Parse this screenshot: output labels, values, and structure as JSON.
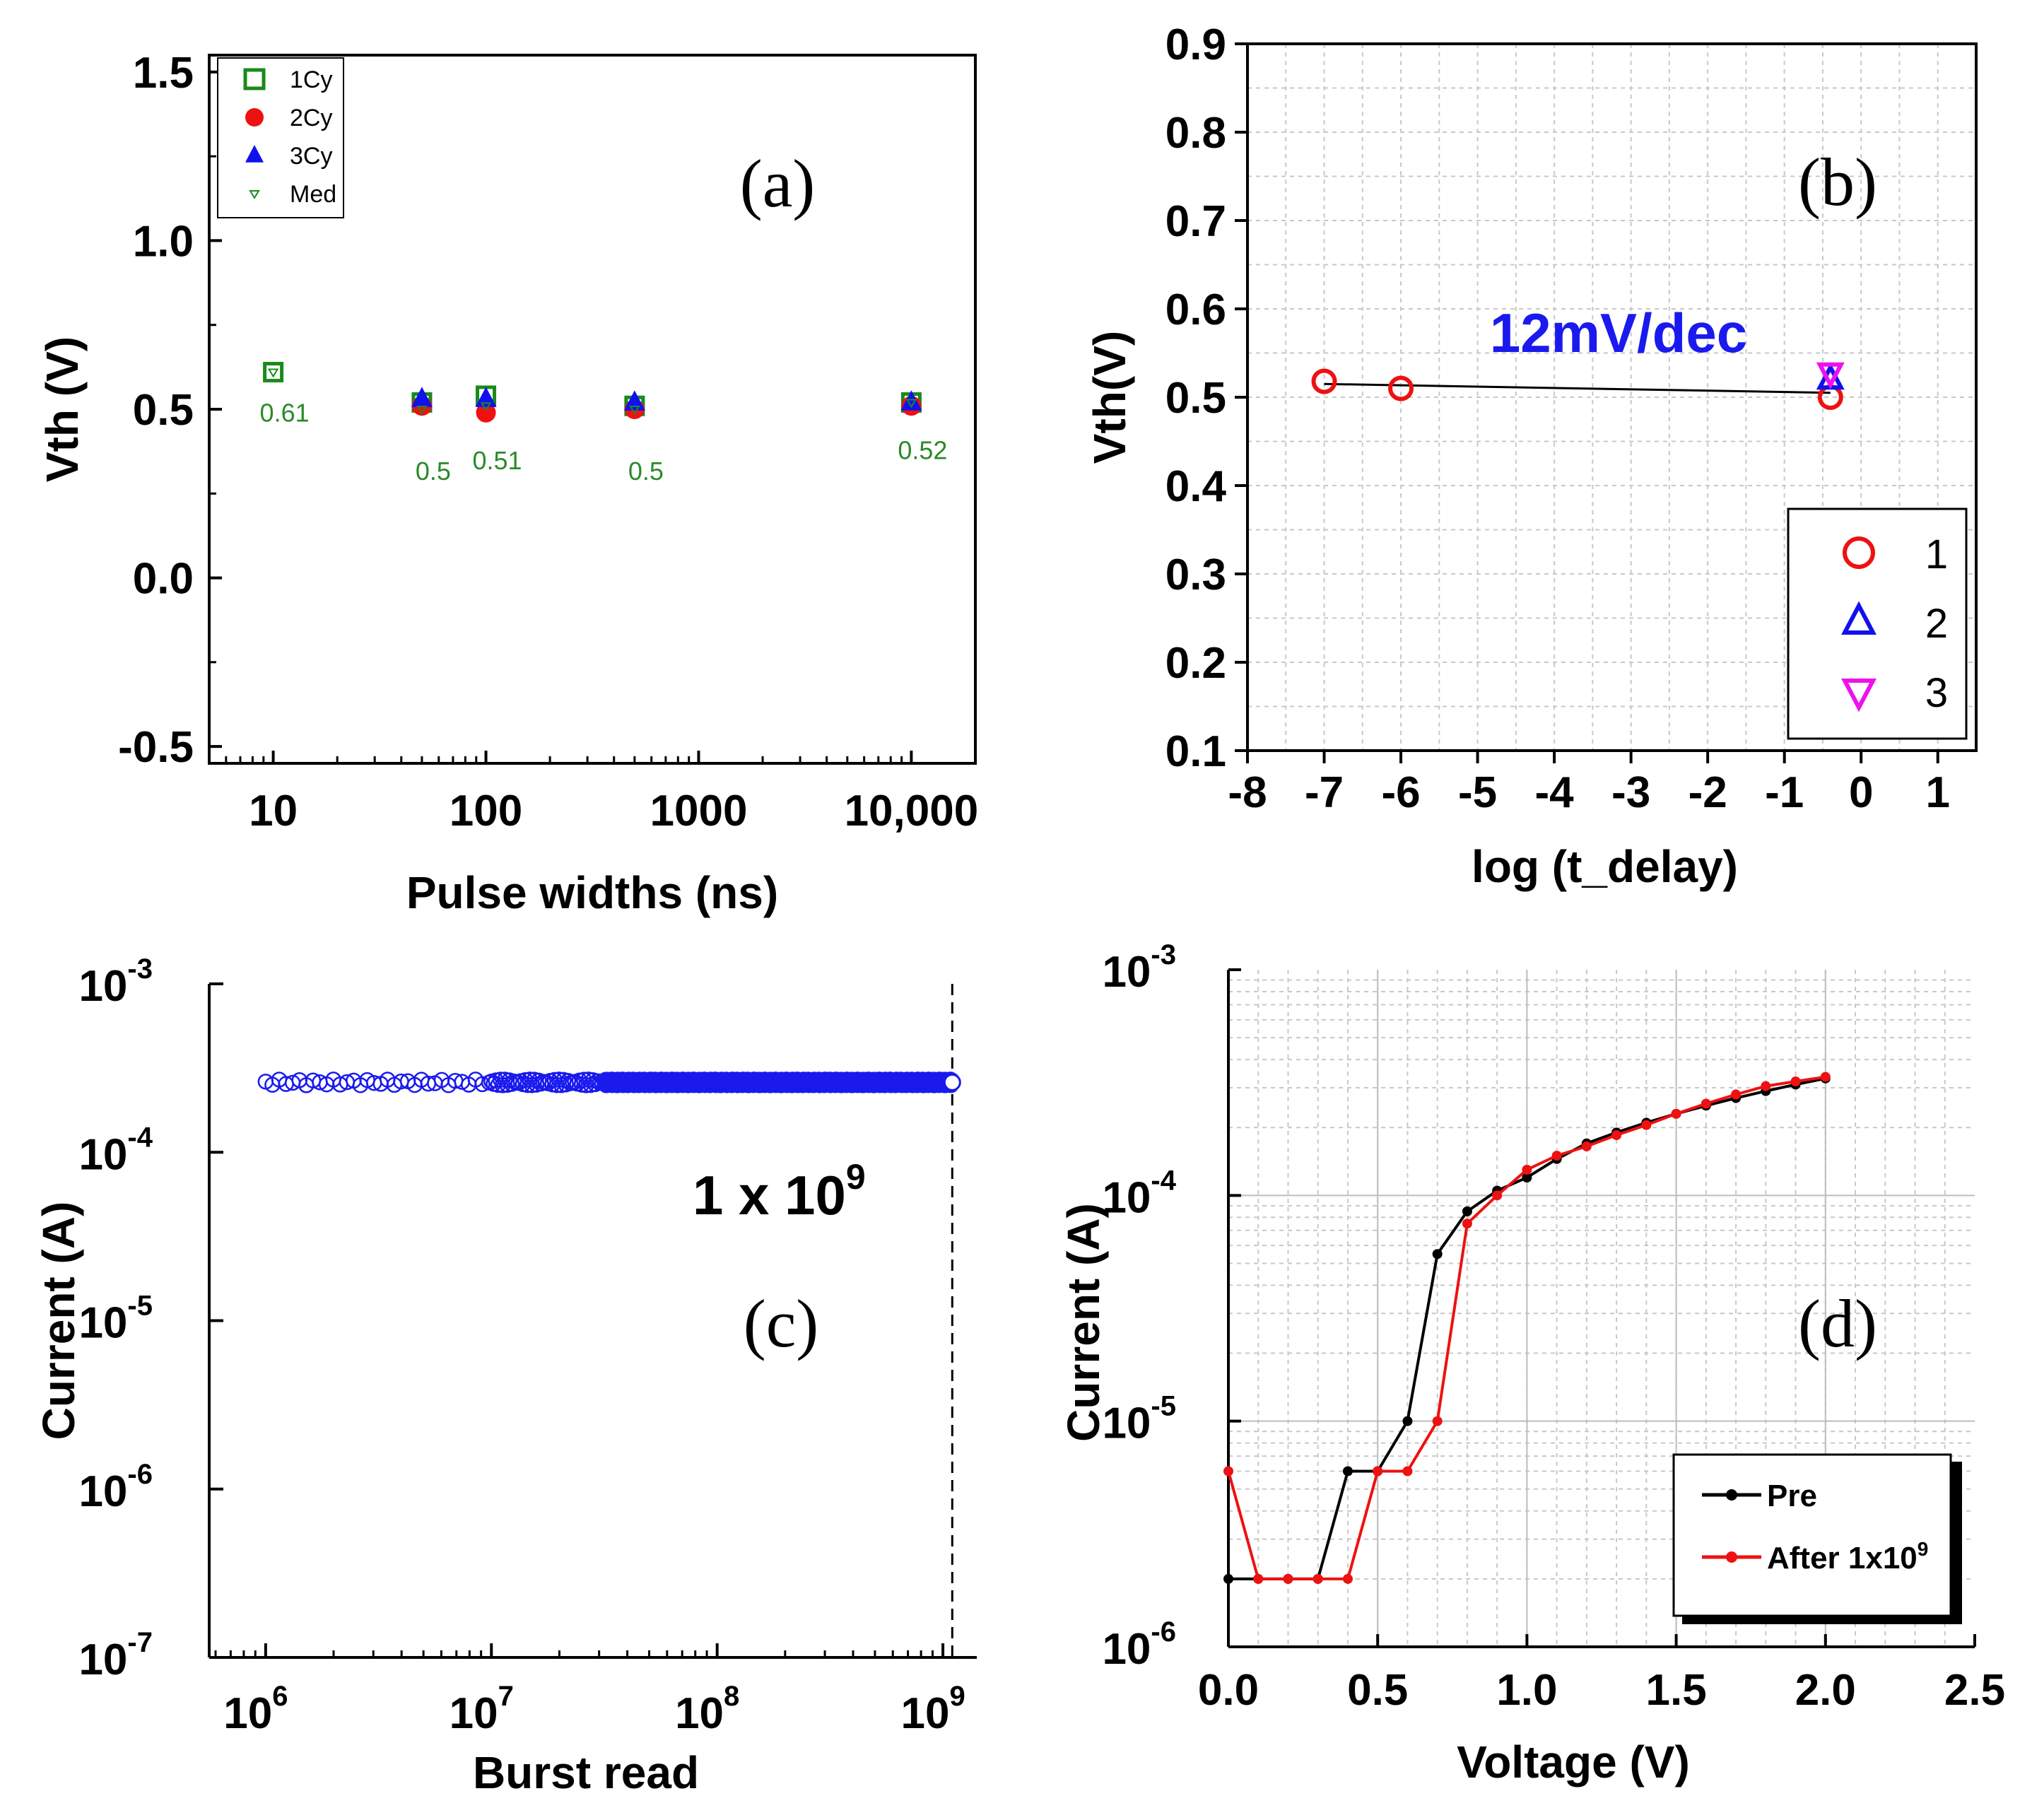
{
  "chart_data": [
    {
      "panel": "(a)",
      "type": "scatter",
      "xscale": "log",
      "xlabel": "Pulse widths (ns)",
      "ylabel": "Vth (V)",
      "xlim": [
        5,
        20000
      ],
      "ylim": [
        -0.55,
        1.55
      ],
      "xticks": [
        {
          "v": 10,
          "label": "10"
        },
        {
          "v": 100,
          "label": "100"
        },
        {
          "v": 1000,
          "label": "1000"
        },
        {
          "v": 10000,
          "label": "10,000"
        }
      ],
      "yticks": [
        {
          "v": 1.5,
          "label": "1.5"
        },
        {
          "v": 1.0,
          "label": "1.0"
        },
        {
          "v": 0.5,
          "label": "0.5"
        },
        {
          "v": 0.0,
          "label": "0.0"
        },
        {
          "v": -0.5,
          "label": "-0.5"
        }
      ],
      "series": [
        {
          "name": "1Cy",
          "marker": "open-square",
          "color": "#1a8a1a",
          "x": [
            10,
            50,
            100,
            500,
            10000
          ],
          "y": [
            0.61,
            0.52,
            0.54,
            0.51,
            0.52
          ]
        },
        {
          "name": "2Cy",
          "marker": "filled-circle",
          "color": "#ee1111",
          "x": [
            50,
            100,
            500,
            10000
          ],
          "y": [
            0.51,
            0.49,
            0.5,
            0.51
          ]
        },
        {
          "name": "3Cy",
          "marker": "filled-triangle",
          "color": "#1111ee",
          "x": [
            50,
            100,
            500,
            10000
          ],
          "y": [
            0.53,
            0.53,
            0.52,
            0.52
          ]
        },
        {
          "name": "Med",
          "marker": "small-open-down-triangle",
          "color": "#1a8a1a",
          "x": [
            10,
            50,
            100,
            500,
            10000
          ],
          "y": [
            0.61,
            0.5,
            0.51,
            0.5,
            0.52
          ]
        }
      ],
      "data_labels": [
        {
          "x": 10,
          "y": 0.61,
          "text": "0.61"
        },
        {
          "x": 50,
          "y": 0.5,
          "text": "0.5"
        },
        {
          "x": 100,
          "y": 0.51,
          "text": "0.51"
        },
        {
          "x": 500,
          "y": 0.5,
          "text": "0.5"
        },
        {
          "x": 10000,
          "y": 0.52,
          "text": "0.52"
        }
      ],
      "legend_position": "top-left"
    },
    {
      "panel": "(b)",
      "type": "scatter",
      "xlabel": "log (t_delay)",
      "ylabel": "Vth(V)",
      "xlim": [
        -8,
        1.5
      ],
      "ylim": [
        0.1,
        0.9
      ],
      "xticks": [
        {
          "v": -8,
          "label": "-8"
        },
        {
          "v": -7,
          "label": "-7"
        },
        {
          "v": -6,
          "label": "-6"
        },
        {
          "v": -5,
          "label": "-5"
        },
        {
          "v": -4,
          "label": "-4"
        },
        {
          "v": -3,
          "label": "-3"
        },
        {
          "v": -2,
          "label": "-2"
        },
        {
          "v": -1,
          "label": "-1"
        },
        {
          "v": 0,
          "label": "0"
        },
        {
          "v": 1,
          "label": "1"
        }
      ],
      "yticks": [
        {
          "v": 0.1,
          "label": "0.1"
        },
        {
          "v": 0.2,
          "label": "0.2"
        },
        {
          "v": 0.3,
          "label": "0.3"
        },
        {
          "v": 0.4,
          "label": "0.4"
        },
        {
          "v": 0.5,
          "label": "0.5"
        },
        {
          "v": 0.6,
          "label": "0.6"
        },
        {
          "v": 0.7,
          "label": "0.7"
        },
        {
          "v": 0.8,
          "label": "0.8"
        },
        {
          "v": 0.9,
          "label": "0.9"
        }
      ],
      "series": [
        {
          "name": "1",
          "marker": "open-circle",
          "color": "#ee1111",
          "x": [
            -7,
            -6,
            -0.4
          ],
          "y": [
            0.518,
            0.51,
            0.5
          ]
        },
        {
          "name": "2",
          "marker": "open-triangle",
          "color": "#1111ee",
          "x": [
            -0.4
          ],
          "y": [
            0.52
          ]
        },
        {
          "name": "3",
          "marker": "open-down-triangle",
          "color": "#ee11ee",
          "x": [
            -0.4
          ],
          "y": [
            0.528
          ]
        }
      ],
      "fit_line": {
        "x": [
          -7,
          -0.4
        ],
        "y": [
          0.515,
          0.505
        ]
      },
      "annotation": "12mV/dec",
      "annotation_color": "#1a1aee",
      "legend_position": "bottom-right"
    },
    {
      "panel": "(c)",
      "type": "scatter",
      "xscale": "log",
      "yscale": "log",
      "xlabel": "Burst read",
      "ylabel": "Current (A)",
      "xlim_exp": [
        5.75,
        9.15
      ],
      "ylim_exp": [
        -7,
        -3
      ],
      "xticks": [
        {
          "base": "10",
          "exp": "6"
        },
        {
          "base": "10",
          "exp": "7"
        },
        {
          "base": "10",
          "exp": "8"
        },
        {
          "base": "10",
          "exp": "9"
        }
      ],
      "yticks": [
        {
          "base": "10",
          "exp": "-3"
        },
        {
          "base": "10",
          "exp": "-4"
        },
        {
          "base": "10",
          "exp": "-5"
        },
        {
          "base": "10",
          "exp": "-6"
        },
        {
          "base": "10",
          "exp": "-7"
        }
      ],
      "series": [
        {
          "name": "Burst read current",
          "marker": "open-circle",
          "color": "#1a1aee",
          "x_range": [
            1000000,
            1100000000
          ],
          "y": 0.00026
        }
      ],
      "marker_line_x": 1100000000,
      "annotation": "1 x 10",
      "annotation_exp": "9"
    },
    {
      "panel": "(d)",
      "type": "line",
      "yscale": "log",
      "xlabel": "Voltage (V)",
      "ylabel": "Current (A)",
      "xlim": [
        0,
        2.5
      ],
      "ylim_exp": [
        -6,
        -3
      ],
      "xticks": [
        {
          "v": 0.0,
          "label": "0.0"
        },
        {
          "v": 0.5,
          "label": "0.5"
        },
        {
          "v": 1.0,
          "label": "1.0"
        },
        {
          "v": 1.5,
          "label": "1.5"
        },
        {
          "v": 2.0,
          "label": "2.0"
        },
        {
          "v": 2.5,
          "label": "2.5"
        }
      ],
      "yticks": [
        {
          "base": "10",
          "exp": "-3"
        },
        {
          "base": "10",
          "exp": "-4"
        },
        {
          "base": "10",
          "exp": "-5"
        },
        {
          "base": "10",
          "exp": "-6"
        }
      ],
      "x": [
        0.0,
        0.1,
        0.2,
        0.3,
        0.4,
        0.5,
        0.6,
        0.7,
        0.8,
        0.9,
        1.0,
        1.1,
        1.2,
        1.3,
        1.4,
        1.5,
        1.6,
        1.7,
        1.8,
        1.9,
        2.0
      ],
      "series": [
        {
          "name": "Pre",
          "color": "#000000",
          "y": [
            2e-06,
            2e-06,
            2e-06,
            2e-06,
            6e-06,
            6e-06,
            1e-05,
            5.5e-05,
            8.5e-05,
            0.000105,
            0.00012,
            0.000145,
            0.00017,
            0.00019,
            0.00021,
            0.00023,
            0.00025,
            0.00027,
            0.00029,
            0.00031,
            0.00033
          ]
        },
        {
          "name": "After 1x10",
          "name_sup": "9",
          "color": "#ee1111",
          "y": [
            6e-06,
            2e-06,
            2e-06,
            2e-06,
            2e-06,
            6e-06,
            6e-06,
            1e-05,
            7.5e-05,
            0.0001,
            0.00013,
            0.00015,
            0.000165,
            0.000185,
            0.000205,
            0.00023,
            0.000255,
            0.00028,
            0.000305,
            0.00032,
            0.000335
          ]
        }
      ],
      "legend_position": "bottom-right"
    }
  ]
}
